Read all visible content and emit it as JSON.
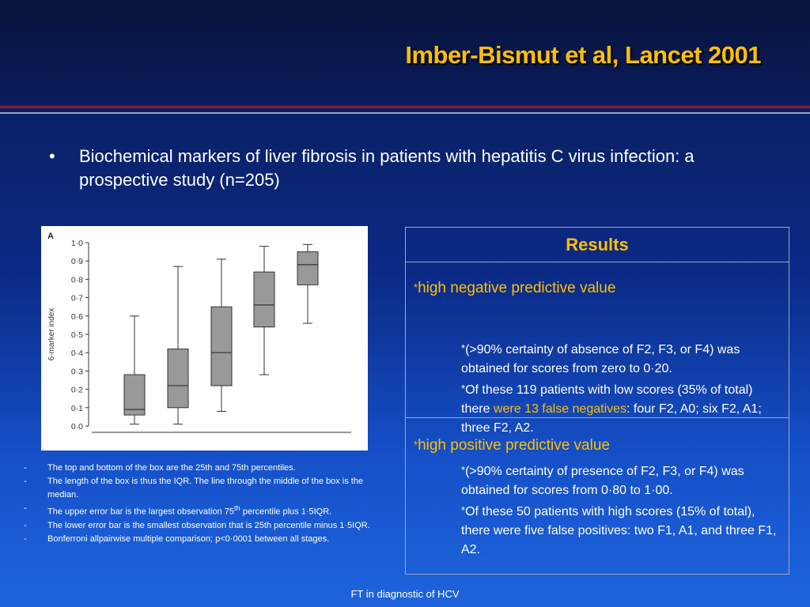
{
  "header": {
    "title": "Imber-Bismut et al, Lancet 2001"
  },
  "bullet": {
    "symbol": "•",
    "text": "Biochemical markers of liver fibrosis in patients with hepatitis C virus infection: a prospective study (n=205)"
  },
  "chart_data": {
    "type": "box",
    "panel_label": "A",
    "ylabel": "6-marker index",
    "ylim": [
      0,
      1.0
    ],
    "yticks": [
      "0·0",
      "0·1",
      "0·2",
      "0·3",
      "0·4",
      "0·5",
      "0·6",
      "0·7",
      "0·8",
      "0·9",
      "1·0"
    ],
    "grid": false,
    "series": [
      {
        "whisker_low": 0.01,
        "q1": 0.06,
        "median": 0.09,
        "q3": 0.28,
        "whisker_high": 0.6
      },
      {
        "whisker_low": 0.01,
        "q1": 0.1,
        "median": 0.22,
        "q3": 0.42,
        "whisker_high": 0.87
      },
      {
        "whisker_low": 0.08,
        "q1": 0.22,
        "median": 0.4,
        "q3": 0.65,
        "whisker_high": 0.91
      },
      {
        "whisker_low": 0.28,
        "q1": 0.54,
        "median": 0.66,
        "q3": 0.84,
        "whisker_high": 0.98
      },
      {
        "whisker_low": 0.56,
        "q1": 0.77,
        "median": 0.88,
        "q3": 0.95,
        "whisker_high": 0.99
      }
    ],
    "colors": {
      "box": "#999999",
      "line": "#333333"
    }
  },
  "notes": [
    {
      "dash": "-",
      "text": "The top and bottom of the box are the 25th and 75th percentiles."
    },
    {
      "dash": "-",
      "text": "The length of the box is thus the IQR. The line through the middle of the box is the median."
    },
    {
      "dash": "-",
      "text_pre": "The upper error bar is the largest observation 75",
      "sup": "th",
      "text_post": " percentile plus 1·5IQR."
    },
    {
      "dash": "-",
      "text": "The lower error bar is the smallest observation that is 25th percentile minus 1·5IQR."
    },
    {
      "dash": "-",
      "text": "Bonferroni allpairwise multiple comparison; p<0·0001 between all stages."
    }
  ],
  "results": {
    "header": "Results",
    "star": "*",
    "npv": {
      "title": "high negative predictive value",
      "item1": "(>90% certainty of absence of F2, F3, or F4) was obtained for scores from zero to 0·20.",
      "item2_pre": "Of these 119 patients with low scores (35% of total) there ",
      "item2_hl": "were 13 false negatives",
      "item2_post": ": four F2, A0; six F2, A1; three F2, A2."
    },
    "ppv": {
      "title": "high positive predictive value",
      "item1": "(>90% certainty of presence of F2, F3, or F4) was obtained for scores from 0·80 to 1·00.",
      "item2": "Of these 50 patients with high scores (15% of total), there were five false positives: two F1, A1, and three F1, A2."
    }
  },
  "footer": {
    "text": "FT in diagnostic of HCV"
  },
  "theme": {
    "accent": "#ffc000",
    "bg_dark": "#0a1a4e",
    "bg_light": "#1e64dc"
  }
}
